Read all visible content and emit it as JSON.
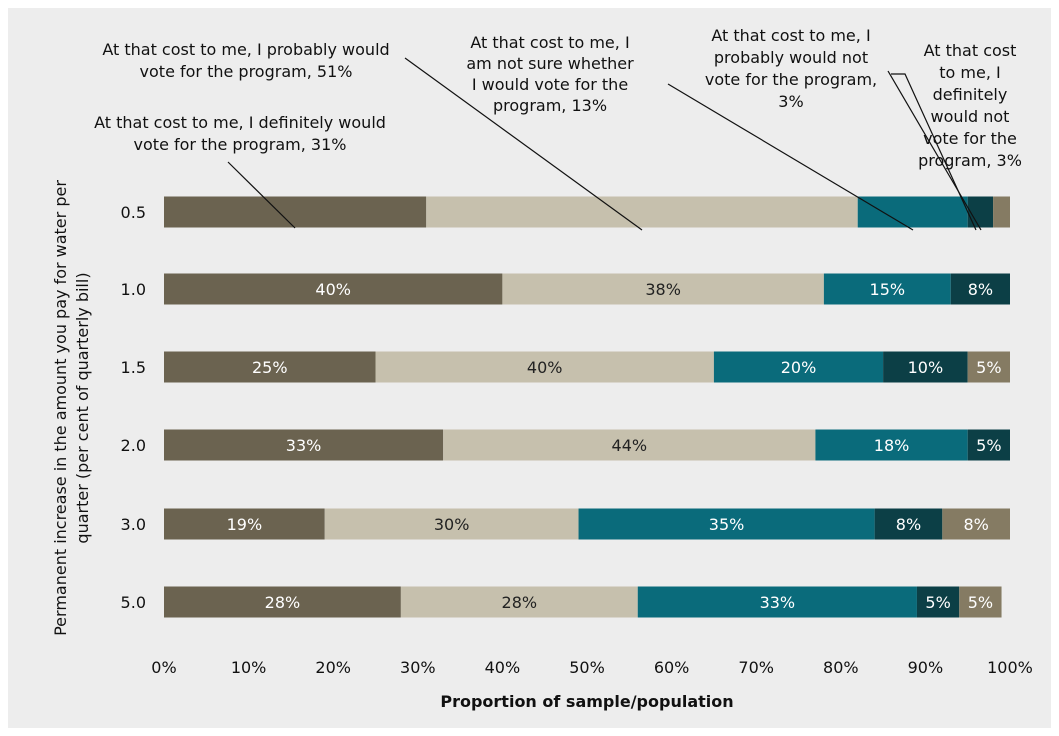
{
  "chart_data": {
    "type": "bar",
    "orientation": "horizontal",
    "stacked": true,
    "xlabel": "Proportion of sample/population",
    "ylabel_lines": [
      "Permanent increase in the amount you pay for water per",
      "quarter (per cent of quarterly bill)"
    ],
    "xlim": [
      0,
      100
    ],
    "x_ticks": [
      "0%",
      "10%",
      "20%",
      "30%",
      "40%",
      "50%",
      "60%",
      "70%",
      "80%",
      "90%",
      "100%"
    ],
    "categories": [
      "0.5",
      "1.0",
      "1.5",
      "2.0",
      "3.0",
      "5.0"
    ],
    "series": [
      {
        "values": [
          31,
          40,
          25,
          33,
          19,
          28
        ],
        "labels": [
          "",
          "40%",
          "25%",
          "33%",
          "19%",
          "28%"
        ],
        "color": "#6b6350",
        "label_color": "#ffffff"
      },
      {
        "values": [
          51,
          38,
          40,
          44,
          30,
          28
        ],
        "labels": [
          "",
          "38%",
          "40%",
          "44%",
          "30%",
          "28%"
        ],
        "color": "#c6c0ad",
        "label_color": "#222222"
      },
      {
        "values": [
          13,
          15,
          20,
          18,
          35,
          33
        ],
        "labels": [
          "",
          "15%",
          "20%",
          "18%",
          "35%",
          "33%"
        ],
        "color": "#0a6b7b",
        "label_color": "#ffffff"
      },
      {
        "values": [
          3,
          8,
          10,
          5,
          8,
          5
        ],
        "labels": [
          "",
          "8%",
          "10%",
          "5%",
          "8%",
          "5%"
        ],
        "color": "#0c3f46",
        "label_color": "#ffffff"
      },
      {
        "values": [
          3,
          0,
          5,
          0,
          8,
          5
        ],
        "labels": [
          "",
          "",
          "5%",
          "",
          "8%",
          "5%"
        ],
        "color": "#857b63",
        "label_color": "#ffffff"
      }
    ],
    "annotations": [
      {
        "lines": [
          "At that cost to me, I definitely would",
          "vote for the program, 31%"
        ],
        "series": 0
      },
      {
        "lines": [
          "At that cost to me, I probably would",
          "vote for the program, 51%"
        ],
        "series": 1
      },
      {
        "lines": [
          "At that cost to me, I",
          "am not sure whether",
          "I would vote for the",
          "program, 13%"
        ],
        "series": 2
      },
      {
        "lines": [
          "At that cost to me, I",
          "probably would not",
          "vote for the program,",
          "3%"
        ],
        "series": 3
      },
      {
        "lines": [
          "At that cost",
          "to me, I",
          "definitely",
          "would not",
          "vote for the",
          "program, 3%"
        ],
        "series": 4
      }
    ]
  }
}
